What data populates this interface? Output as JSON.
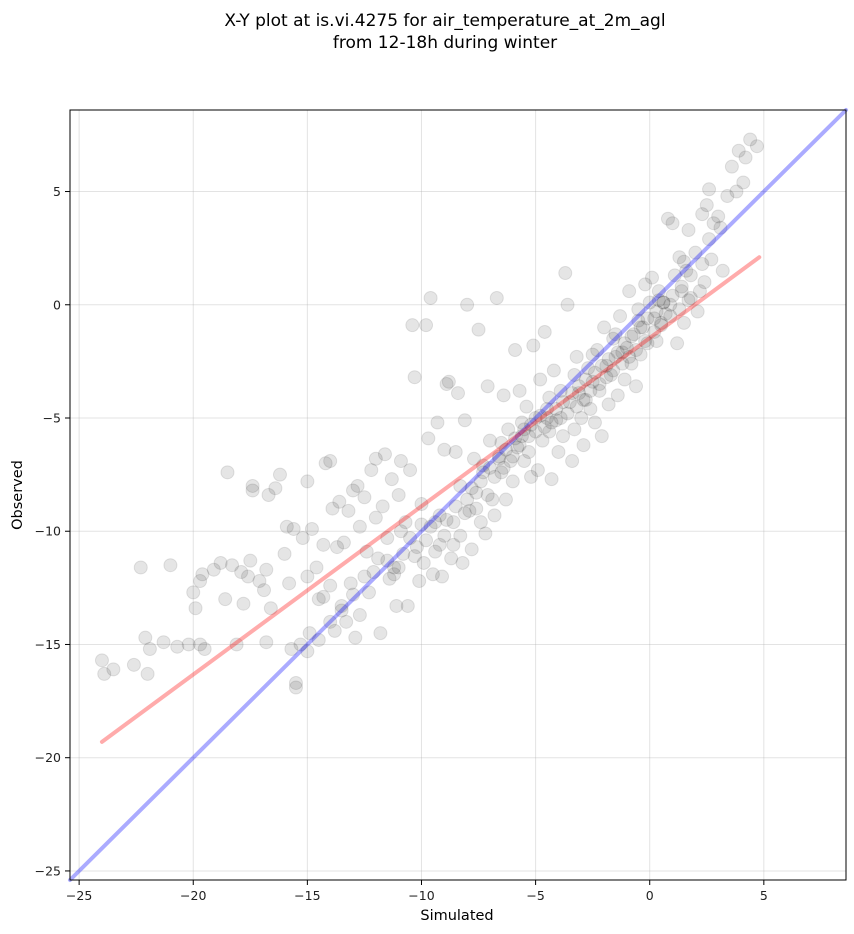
{
  "chart_data": {
    "type": "scatter",
    "title": "X-Y plot at is.vi.4275 for air_temperature_at_2m_agl",
    "subtitle": "from 12-18h during winter",
    "xlabel": "Simulated",
    "ylabel": "Observed",
    "xlim": [
      -25.4,
      8.6
    ],
    "ylim": [
      -25.4,
      8.6
    ],
    "xticks": [
      -25,
      -20,
      -15,
      -10,
      -5,
      0,
      5
    ],
    "yticks": [
      -25,
      -20,
      -15,
      -10,
      -5,
      0,
      5
    ],
    "grid": true,
    "point_color": "#000000",
    "identity_line": {
      "color": "#0000ff",
      "from": [
        -25.4,
        -25.4
      ],
      "to": [
        8.6,
        8.6
      ]
    },
    "fit_line": {
      "color": "#ff0000",
      "from": [
        -24.0,
        -19.3
      ],
      "to": [
        4.8,
        2.1
      ]
    },
    "points": [
      [
        -24.0,
        -15.7
      ],
      [
        -23.9,
        -16.3
      ],
      [
        -23.5,
        -16.1
      ],
      [
        -22.6,
        -15.9
      ],
      [
        -22.3,
        -11.6
      ],
      [
        -22.1,
        -14.7
      ],
      [
        -22.0,
        -16.3
      ],
      [
        -21.9,
        -15.2
      ],
      [
        -21.0,
        -11.5
      ],
      [
        -21.3,
        -14.9
      ],
      [
        -20.7,
        -15.1
      ],
      [
        -20.2,
        -15.0
      ],
      [
        -20.0,
        -12.7
      ],
      [
        -19.9,
        -13.4
      ],
      [
        -19.7,
        -15.0
      ],
      [
        -19.5,
        -15.2
      ],
      [
        -19.6,
        -11.9
      ],
      [
        -19.7,
        -12.2
      ],
      [
        -19.1,
        -11.7
      ],
      [
        -18.8,
        -11.4
      ],
      [
        -18.6,
        -13.0
      ],
      [
        -18.5,
        -7.4
      ],
      [
        -18.3,
        -11.5
      ],
      [
        -18.1,
        -15.0
      ],
      [
        -17.9,
        -11.8
      ],
      [
        -17.8,
        -13.2
      ],
      [
        -17.6,
        -12.0
      ],
      [
        -17.5,
        -11.3
      ],
      [
        -17.4,
        -8.2
      ],
      [
        -17.4,
        -8.0
      ],
      [
        -17.1,
        -12.2
      ],
      [
        -16.9,
        -12.6
      ],
      [
        -16.8,
        -11.7
      ],
      [
        -16.8,
        -14.9
      ],
      [
        -16.7,
        -8.4
      ],
      [
        -16.6,
        -13.4
      ],
      [
        -16.4,
        -8.1
      ],
      [
        -16.2,
        -7.5
      ],
      [
        -16.0,
        -11.0
      ],
      [
        -15.9,
        -9.8
      ],
      [
        -15.8,
        -12.3
      ],
      [
        -15.6,
        -9.9
      ],
      [
        -15.7,
        -15.2
      ],
      [
        -15.5,
        -16.7
      ],
      [
        -15.5,
        -16.9
      ],
      [
        -15.3,
        -15.0
      ],
      [
        -15.2,
        -10.3
      ],
      [
        -15.0,
        -12.0
      ],
      [
        -15.0,
        -7.8
      ],
      [
        -14.9,
        -14.5
      ],
      [
        -14.8,
        -9.9
      ],
      [
        -14.6,
        -11.6
      ],
      [
        -14.5,
        -13.0
      ],
      [
        -14.3,
        -10.6
      ],
      [
        -14.3,
        -12.9
      ],
      [
        -14.2,
        -7.0
      ],
      [
        -14.0,
        -6.9
      ],
      [
        -14.0,
        -12.4
      ],
      [
        -13.8,
        -14.4
      ],
      [
        -13.7,
        -10.7
      ],
      [
        -13.6,
        -8.7
      ],
      [
        -13.5,
        -13.3
      ],
      [
        -13.4,
        -10.5
      ],
      [
        -13.3,
        -14.0
      ],
      [
        -13.2,
        -9.1
      ],
      [
        -13.1,
        -12.3
      ],
      [
        -13.0,
        -8.2
      ],
      [
        -12.9,
        -14.7
      ],
      [
        -12.7,
        -9.8
      ],
      [
        -12.7,
        -13.7
      ],
      [
        -12.5,
        -8.5
      ],
      [
        -12.4,
        -10.9
      ],
      [
        -12.3,
        -12.7
      ],
      [
        -12.2,
        -7.3
      ],
      [
        -12.0,
        -6.8
      ],
      [
        -12.0,
        -9.4
      ],
      [
        -11.9,
        -11.2
      ],
      [
        -11.8,
        -14.5
      ],
      [
        -11.7,
        -8.9
      ],
      [
        -11.6,
        -6.6
      ],
      [
        -11.5,
        -10.3
      ],
      [
        -11.4,
        -12.1
      ],
      [
        -11.3,
        -7.7
      ],
      [
        -11.2,
        -11.6
      ],
      [
        -11.1,
        -13.3
      ],
      [
        -11.0,
        -8.4
      ],
      [
        -10.9,
        -6.9
      ],
      [
        -10.8,
        -11.0
      ],
      [
        -10.7,
        -9.6
      ],
      [
        -10.6,
        -13.3
      ],
      [
        -10.5,
        -7.3
      ],
      [
        -10.4,
        -0.9
      ],
      [
        -10.3,
        -3.2
      ],
      [
        -10.2,
        -10.7
      ],
      [
        -10.1,
        -12.2
      ],
      [
        -10.0,
        -8.8
      ],
      [
        -9.9,
        -11.4
      ],
      [
        -9.8,
        -0.9
      ],
      [
        -9.7,
        -5.9
      ],
      [
        -9.6,
        0.3
      ],
      [
        -9.5,
        -11.9
      ],
      [
        -9.4,
        -9.6
      ],
      [
        -9.3,
        -5.2
      ],
      [
        -9.2,
        -10.6
      ],
      [
        -9.1,
        -12.0
      ],
      [
        -9.0,
        -6.4
      ],
      [
        -8.9,
        -3.5
      ],
      [
        -8.8,
        -3.4
      ],
      [
        -8.7,
        -11.2
      ],
      [
        -8.6,
        -9.6
      ],
      [
        -8.5,
        -6.5
      ],
      [
        -8.4,
        -3.9
      ],
      [
        -8.3,
        -10.2
      ],
      [
        -8.2,
        -11.4
      ],
      [
        -8.1,
        -5.1
      ],
      [
        -8.0,
        0.0
      ],
      [
        -7.9,
        -9.1
      ],
      [
        -7.8,
        -10.8
      ],
      [
        -7.7,
        -6.8
      ],
      [
        -7.6,
        -8.3
      ],
      [
        -7.5,
        -1.1
      ],
      [
        -7.4,
        -9.6
      ],
      [
        -7.3,
        -7.1
      ],
      [
        -7.2,
        -10.1
      ],
      [
        -7.1,
        -3.6
      ],
      [
        -7.0,
        -6.0
      ],
      [
        -6.9,
        -8.6
      ],
      [
        -6.8,
        -9.3
      ],
      [
        -6.7,
        0.3
      ],
      [
        -6.6,
        -6.7
      ],
      [
        -6.5,
        -7.4
      ],
      [
        -6.4,
        -4.0
      ],
      [
        -6.3,
        -8.6
      ],
      [
        -6.2,
        -5.5
      ],
      [
        -6.1,
        -6.9
      ],
      [
        -6.0,
        -7.8
      ],
      [
        -5.9,
        -2.0
      ],
      [
        -5.8,
        -6.3
      ],
      [
        -5.7,
        -3.8
      ],
      [
        -5.6,
        -5.8
      ],
      [
        -5.5,
        -6.9
      ],
      [
        -5.4,
        -4.5
      ],
      [
        -5.3,
        -6.5
      ],
      [
        -5.2,
        -7.6
      ],
      [
        -5.1,
        -1.8
      ],
      [
        -5.0,
        -5.0
      ],
      [
        -4.9,
        -7.3
      ],
      [
        -4.8,
        -3.3
      ],
      [
        -4.7,
        -6.0
      ],
      [
        -4.6,
        -1.2
      ],
      [
        -4.5,
        -4.6
      ],
      [
        -4.4,
        -5.6
      ],
      [
        -4.3,
        -7.7
      ],
      [
        -4.2,
        -2.9
      ],
      [
        -4.1,
        -5.1
      ],
      [
        -4.0,
        -6.5
      ],
      [
        -3.9,
        -3.8
      ],
      [
        -3.8,
        -5.8
      ],
      [
        -3.7,
        1.4
      ],
      [
        -3.6,
        0.0
      ],
      [
        -3.5,
        -4.3
      ],
      [
        -3.4,
        -6.9
      ],
      [
        -3.3,
        -5.5
      ],
      [
        -3.2,
        -2.3
      ],
      [
        -3.1,
        -3.9
      ],
      [
        -3.0,
        -5.0
      ],
      [
        -2.9,
        -6.2
      ],
      [
        -2.8,
        -4.2
      ],
      [
        -2.7,
        -2.8
      ],
      [
        -2.6,
        -4.6
      ],
      [
        -2.5,
        -3.4
      ],
      [
        -2.4,
        -5.2
      ],
      [
        -2.3,
        -2.0
      ],
      [
        -2.2,
        -3.8
      ],
      [
        -2.1,
        -5.8
      ],
      [
        -2.0,
        -1.0
      ],
      [
        -1.9,
        -2.7
      ],
      [
        -1.8,
        -4.4
      ],
      [
        -1.7,
        -3.1
      ],
      [
        -1.6,
        -1.5
      ],
      [
        -1.5,
        -2.3
      ],
      [
        -1.4,
        -4.0
      ],
      [
        -1.3,
        -0.5
      ],
      [
        -1.2,
        -2.1
      ],
      [
        -1.1,
        -3.3
      ],
      [
        -1.0,
        -1.9
      ],
      [
        -0.9,
        0.6
      ],
      [
        -0.8,
        -2.6
      ],
      [
        -0.7,
        -1.3
      ],
      [
        -0.6,
        -3.6
      ],
      [
        -0.5,
        -0.2
      ],
      [
        -0.4,
        -2.2
      ],
      [
        -0.3,
        -1.0
      ],
      [
        -0.2,
        0.9
      ],
      [
        -0.1,
        -1.7
      ],
      [
        0.0,
        0.1
      ],
      [
        0.1,
        1.2
      ],
      [
        0.2,
        -0.6
      ],
      [
        0.3,
        -1.6
      ],
      [
        0.4,
        0.2
      ],
      [
        0.5,
        -0.9
      ],
      [
        0.6,
        0.1
      ],
      [
        0.7,
        -0.4
      ],
      [
        0.8,
        3.8
      ],
      [
        0.9,
        0.0
      ],
      [
        1.0,
        3.6
      ],
      [
        1.1,
        1.3
      ],
      [
        1.2,
        -1.7
      ],
      [
        1.3,
        2.1
      ],
      [
        1.4,
        0.6
      ],
      [
        1.5,
        -0.8
      ],
      [
        1.6,
        1.5
      ],
      [
        1.7,
        3.3
      ],
      [
        1.8,
        0.3
      ],
      [
        2.0,
        2.3
      ],
      [
        2.1,
        -0.3
      ],
      [
        2.3,
        4.0
      ],
      [
        2.4,
        1.0
      ],
      [
        2.5,
        4.4
      ],
      [
        2.6,
        5.1
      ],
      [
        2.7,
        2.0
      ],
      [
        2.8,
        3.6
      ],
      [
        3.0,
        3.9
      ],
      [
        3.2,
        1.5
      ],
      [
        3.4,
        4.8
      ],
      [
        3.6,
        6.1
      ],
      [
        3.8,
        5.0
      ],
      [
        3.9,
        6.8
      ],
      [
        4.1,
        5.4
      ],
      [
        4.2,
        6.5
      ],
      [
        4.4,
        7.3
      ],
      [
        4.7,
        7.0
      ],
      [
        -12.8,
        -8.0
      ],
      [
        -13.9,
        -9.0
      ],
      [
        -12.1,
        -11.8
      ],
      [
        -11.2,
        -11.9
      ],
      [
        -10.9,
        -10.0
      ],
      [
        -10.3,
        -11.1
      ],
      [
        -9.8,
        -10.4
      ],
      [
        -9.4,
        -10.9
      ],
      [
        -8.9,
        -9.5
      ],
      [
        -8.5,
        -8.9
      ],
      [
        -8.1,
        -9.2
      ],
      [
        -7.8,
        -8.1
      ],
      [
        -7.4,
        -7.8
      ],
      [
        -7.0,
        -7.2
      ],
      [
        -6.6,
        -6.8
      ],
      [
        -6.3,
        -6.4
      ],
      [
        -5.9,
        -5.9
      ],
      [
        -5.5,
        -5.5
      ],
      [
        -5.2,
        -5.3
      ],
      [
        -4.8,
        -4.9
      ],
      [
        -4.5,
        -5.0
      ],
      [
        -4.1,
        -4.6
      ],
      [
        -3.8,
        -4.3
      ],
      [
        -3.4,
        -3.9
      ],
      [
        -3.1,
        -3.6
      ],
      [
        -2.8,
        -3.3
      ],
      [
        -2.4,
        -3.0
      ],
      [
        -2.1,
        -2.7
      ],
      [
        -1.8,
        -2.4
      ],
      [
        -1.4,
        -2.1
      ],
      [
        -1.1,
        -1.7
      ],
      [
        -0.8,
        -1.4
      ],
      [
        -0.4,
        -1.0
      ],
      [
        -0.1,
        -0.6
      ],
      [
        0.3,
        -0.3
      ],
      [
        0.6,
        0.1
      ],
      [
        1.0,
        0.4
      ],
      [
        1.4,
        0.8
      ],
      [
        1.8,
        1.3
      ],
      [
        2.3,
        1.8
      ],
      [
        -9.6,
        -9.8
      ],
      [
        -9.0,
        -10.2
      ],
      [
        -8.6,
        -10.6
      ],
      [
        -8.0,
        -8.6
      ],
      [
        -7.6,
        -9.0
      ],
      [
        -7.1,
        -8.4
      ],
      [
        -6.8,
        -7.6
      ],
      [
        -6.4,
        -7.2
      ],
      [
        -6.0,
        -6.7
      ],
      [
        -5.7,
        -6.2
      ],
      [
        -5.3,
        -5.8
      ],
      [
        -5.0,
        -5.6
      ],
      [
        -4.6,
        -5.4
      ],
      [
        -4.3,
        -5.2
      ],
      [
        -3.9,
        -5.0
      ],
      [
        -3.6,
        -4.8
      ],
      [
        -3.2,
        -4.5
      ],
      [
        -2.9,
        -4.2
      ],
      [
        -2.6,
        -3.8
      ],
      [
        -2.2,
        -3.5
      ],
      [
        -1.9,
        -3.2
      ],
      [
        -1.6,
        -2.9
      ],
      [
        -1.2,
        -2.6
      ],
      [
        -0.9,
        -2.3
      ],
      [
        -0.6,
        -2.0
      ],
      [
        -0.2,
        -1.6
      ],
      [
        0.2,
        -1.2
      ],
      [
        0.5,
        -0.8
      ],
      [
        0.9,
        -0.5
      ],
      [
        1.3,
        -0.2
      ],
      [
        1.7,
        0.2
      ],
      [
        2.2,
        0.6
      ],
      [
        -12.5,
        -12.0
      ],
      [
        -13.0,
        -12.8
      ],
      [
        -13.5,
        -13.5
      ],
      [
        -14.0,
        -14.0
      ],
      [
        -14.5,
        -14.8
      ],
      [
        -15.0,
        -15.3
      ],
      [
        -11.5,
        -11.3
      ],
      [
        -11.0,
        -11.6
      ],
      [
        -10.5,
        -10.3
      ],
      [
        -10.0,
        -9.7
      ],
      [
        -9.2,
        -9.3
      ],
      [
        -8.3,
        -8.0
      ],
      [
        -7.3,
        -7.4
      ],
      [
        -6.5,
        -6.1
      ],
      [
        -5.6,
        -5.2
      ],
      [
        -4.4,
        -4.1
      ],
      [
        -3.3,
        -3.1
      ],
      [
        -2.5,
        -2.2
      ],
      [
        -1.5,
        -1.3
      ],
      [
        -0.5,
        -0.7
      ],
      [
        0.4,
        0.6
      ],
      [
        1.5,
        1.9
      ],
      [
        2.6,
        2.9
      ],
      [
        3.1,
        3.4
      ]
    ]
  }
}
